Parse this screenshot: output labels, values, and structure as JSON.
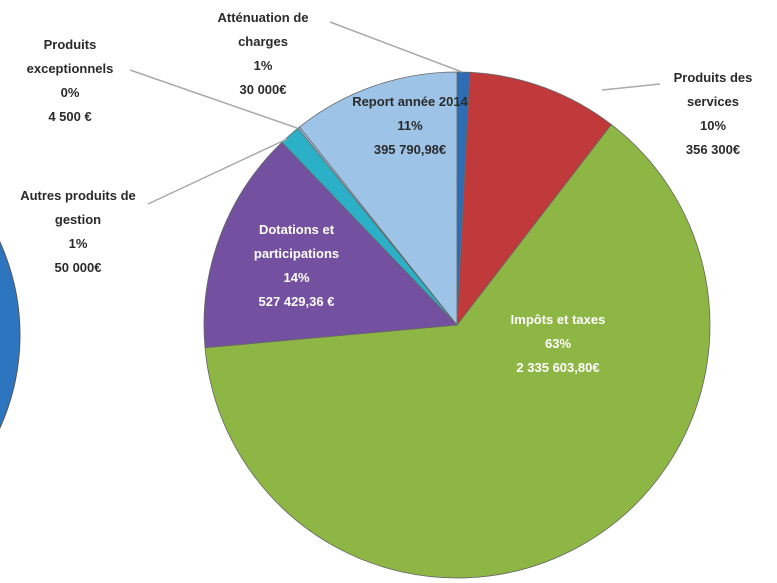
{
  "chart_data": {
    "type": "pie",
    "categories": [
      "Atténuation de charges",
      "Produits des services",
      "Impôts et taxes",
      "Dotations et participations",
      "Autres produits de gestion",
      "Produits exceptionnels",
      "Report année 2014"
    ],
    "values": [
      30000,
      356300,
      2335603.8,
      527429.36,
      50000,
      4500,
      395790.98
    ],
    "value_labels": [
      "30 000€",
      "356 300€",
      "2 335 603,80€",
      "527 429,36 €",
      "50 000€",
      "4 500 €",
      "395 790,98€"
    ],
    "percent_labels": [
      "1%",
      "10%",
      "63%",
      "14%",
      "1%",
      "0%",
      "11%"
    ],
    "colors": [
      "#2e6db4",
      "#c0393b",
      "#8db644",
      "#7350a0",
      "#2bb0c8",
      "#a9c4e6",
      "#9dc3e6"
    ]
  }
}
